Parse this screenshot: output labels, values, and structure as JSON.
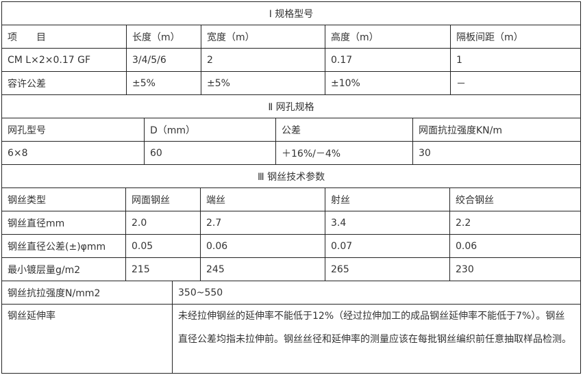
{
  "section1": {
    "title": "Ⅰ 规格型号",
    "headers": [
      "项　　目",
      "长度（m）",
      "宽度（m）",
      "高度（m）",
      "隔板间距（m）"
    ],
    "rows": [
      [
        "CM L×2×0.17  GF",
        "3/4/5/6",
        "2",
        "0.17",
        "1"
      ],
      [
        "容许公差",
        "±5%",
        "±5%",
        "±10%",
        "－"
      ]
    ]
  },
  "section2": {
    "title": "Ⅱ 网孔规格",
    "headers": [
      "网孔型号",
      "D（mm）",
      "公差",
      "网面抗拉强度KN/m"
    ],
    "rows": [
      [
        "6×8",
        "60",
        "＋16%/－4%",
        "30"
      ]
    ]
  },
  "section3": {
    "title": "Ⅲ 钢丝技术参数",
    "headers": [
      "钢丝类型",
      "网面钢丝",
      "端丝",
      "射丝",
      "绞合钢丝"
    ],
    "rows": [
      [
        "钢丝直径mm",
        "2.0",
        "2.7",
        "3.4",
        "2.2"
      ],
      [
        "钢丝直径公差(±)φmm",
        "0.05",
        "0.06",
        "0.07",
        "0.06"
      ],
      [
        "最小镀层量g/m2",
        "215",
        "245",
        "265",
        "230"
      ]
    ],
    "strength_label": "钢丝抗拉强度N/mm2",
    "strength_value": "350~550",
    "elongation_label": "钢丝延伸率",
    "elongation_value": "未经拉伸钢丝的延伸率不能低于12%（经过拉伸加工的成品钢丝延伸率不能低于7%）。钢丝直径公差均指未拉伸前。钢丝丝径和延伸率的测量应该在每批钢丝编织前任意抽取样品检测。"
  }
}
